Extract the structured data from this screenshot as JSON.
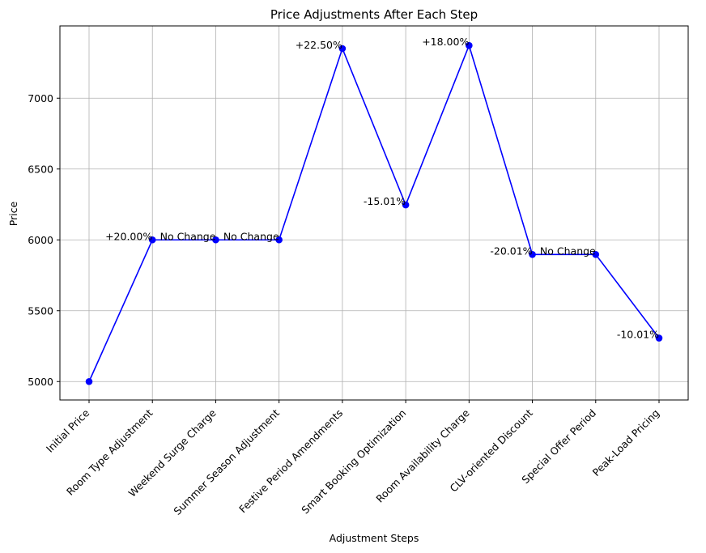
{
  "chart_data": {
    "type": "line",
    "title": "Price Adjustments After Each Step",
    "xlabel": "Adjustment Steps",
    "ylabel": "Price",
    "categories": [
      "Initial Price",
      "Room Type Adjustment",
      "Weekend Surge Charge",
      "Summer Season Adjustment",
      "Festive Period Amendments",
      "Smart Booking Optimization",
      "Room Availability Charge",
      "CLV-oriented Discount",
      "Special Offer Period",
      "Peak-Load Pricing"
    ],
    "values": [
      5000,
      6000,
      6000,
      6000,
      7350,
      6247,
      7372,
      5897,
      5897,
      5307
    ],
    "annotations": [
      "",
      "+20.00%",
      "No Change",
      "No Change",
      "+22.50%",
      "-15.01%",
      "+18.00%",
      "-20.01%",
      "No Change",
      "-10.01%"
    ],
    "yticks": [
      5000,
      5500,
      6000,
      6500,
      7000
    ],
    "ylim": [
      4870,
      7510
    ],
    "grid": true,
    "line_color": "#0000ff",
    "marker_color": "#0000ff"
  }
}
